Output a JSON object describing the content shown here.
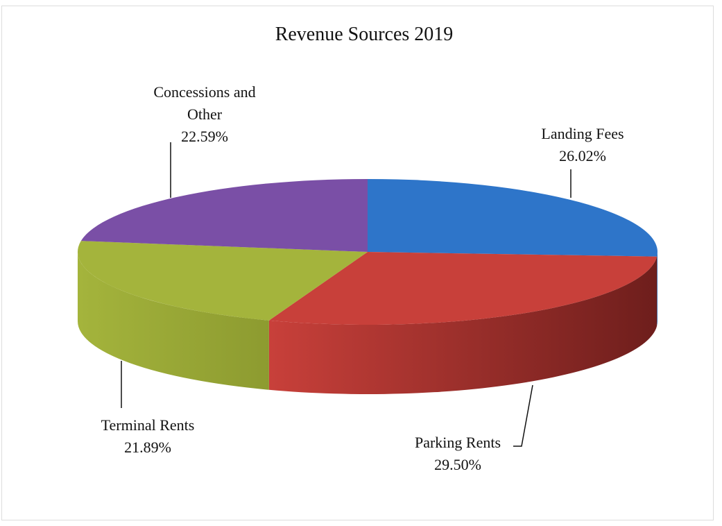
{
  "chart_data": {
    "type": "pie",
    "title": "Revenue Sources 2019",
    "slices": [
      {
        "label_lines": [
          "Landing Fees"
        ],
        "percent_text": "26.02%",
        "value": 26.02,
        "color": "#2e75c9",
        "side_color": "#1f4f8a"
      },
      {
        "label_lines": [
          "Parking Rents"
        ],
        "percent_text": "29.50%",
        "value": 29.5,
        "color": "#c8403a",
        "side_color": "#6e1e1c"
      },
      {
        "label_lines": [
          "Terminal Rents"
        ],
        "percent_text": "21.89%",
        "value": 21.89,
        "color": "#a4b43c",
        "side_color": "#8d9b30"
      },
      {
        "label_lines": [
          "Concessions and",
          "Other"
        ],
        "percent_text": "22.59%",
        "value": 22.59,
        "color": "#7a4fa6",
        "side_color": "#5a3a7c"
      }
    ],
    "legend": "none",
    "labels": "outside-with-leader-lines"
  }
}
